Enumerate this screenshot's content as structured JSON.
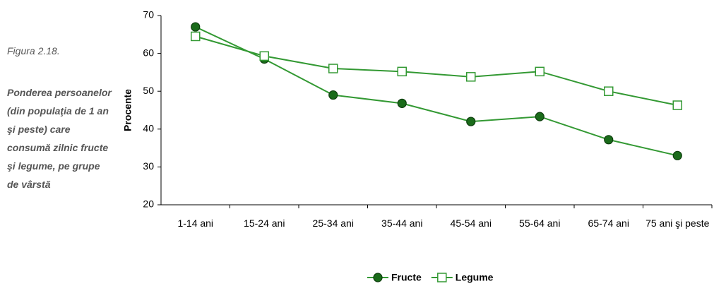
{
  "chart_data": {
    "type": "line",
    "figure_label": "Figura 2.18.",
    "caption": "Ponderea persoanelor (din populaţia de 1 an şi peste) care consumă zilnic fructe şi legume, pe grupe de vârstă",
    "y_label": "Procente",
    "categories": [
      "1-14 ani",
      "15-24 ani",
      "25-34 ani",
      "35-44 ani",
      "45-54 ani",
      "55-64 ani",
      "65-74 ani",
      "75 ani şi peste"
    ],
    "series": [
      {
        "name": "Fructe",
        "color": "#339933",
        "marker": "circle",
        "marker_fill": "#1a6b1a",
        "values": [
          67,
          58.5,
          49,
          46.8,
          42,
          43.3,
          37.2,
          33
        ]
      },
      {
        "name": "Legume",
        "color": "#339933",
        "marker": "square",
        "marker_fill": "#ffffff",
        "values": [
          64.5,
          59.3,
          56,
          55.2,
          53.8,
          55.2,
          50,
          46.3
        ]
      }
    ],
    "ylim": [
      20,
      70
    ],
    "yticks": [
      20,
      30,
      40,
      50,
      60,
      70
    ],
    "grid": false,
    "legend": "bottom"
  }
}
